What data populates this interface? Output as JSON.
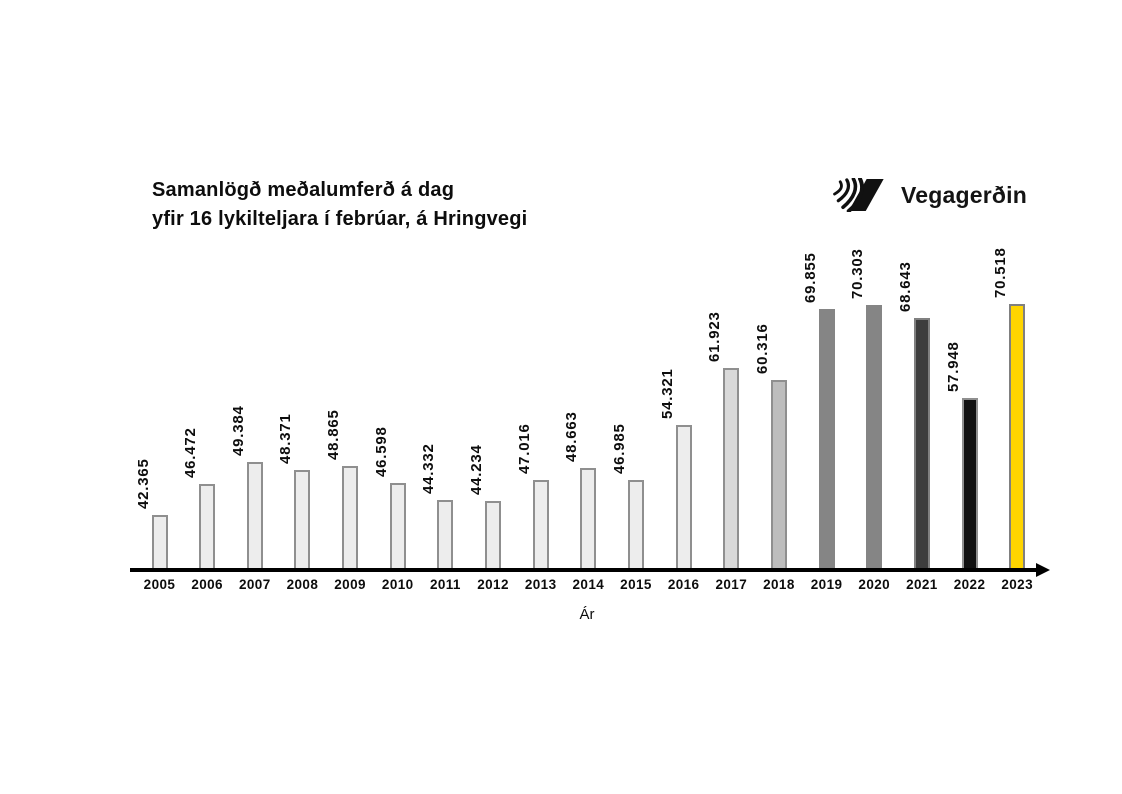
{
  "header": {
    "title_line1": "Samanlögð meðalumferð á dag",
    "title_line2": "yfir 16 lykilteljara í febrúar, á Hringvegi"
  },
  "logo": {
    "text": "Vegagerðin"
  },
  "chart_data": {
    "type": "bar",
    "title": "Samanlögð meðalumferð á dag yfir 16 lykilteljara í febrúar, á Hringvegi",
    "xlabel": "Ár",
    "ylabel": "",
    "ylim": [
      35000,
      71000
    ],
    "grid": false,
    "legend": false,
    "categories": [
      "2005",
      "2006",
      "2007",
      "2008",
      "2009",
      "2010",
      "2011",
      "2012",
      "2013",
      "2014",
      "2015",
      "2016",
      "2017",
      "2018",
      "2019",
      "2020",
      "2021",
      "2022",
      "2023"
    ],
    "values": [
      42365,
      46472,
      49384,
      48371,
      48865,
      46598,
      44332,
      44234,
      47016,
      48663,
      46985,
      54321,
      61923,
      60316,
      69855,
      70303,
      68643,
      57948,
      70518
    ],
    "value_labels": [
      "42.365",
      "46.472",
      "49.384",
      "48.371",
      "48.865",
      "46.598",
      "44.332",
      "44.234",
      "47.016",
      "48.663",
      "46.985",
      "54.321",
      "61.923",
      "60.316",
      "69.855",
      "70.303",
      "68.643",
      "57.948",
      "70.518"
    ],
    "bar_fills": [
      "#ededed",
      "#ededed",
      "#ededed",
      "#ededed",
      "#ededed",
      "#ededed",
      "#ededed",
      "#ededed",
      "#ededed",
      "#ededed",
      "#ededed",
      "#ededed",
      "#d9d9d9",
      "#bdbdbd",
      "#858585",
      "#858585",
      "#3d3d3d",
      "#101010",
      "#ffd500"
    ],
    "bar_borders": [
      "#8f8f8f",
      "#8f8f8f",
      "#8f8f8f",
      "#8f8f8f",
      "#8f8f8f",
      "#8f8f8f",
      "#8f8f8f",
      "#8f8f8f",
      "#8f8f8f",
      "#8f8f8f",
      "#8f8f8f",
      "#8f8f8f",
      "#8f8f8f",
      "#8f8f8f",
      "#858585",
      "#858585",
      "#808080",
      "#8f8f8f",
      "#808080"
    ]
  }
}
